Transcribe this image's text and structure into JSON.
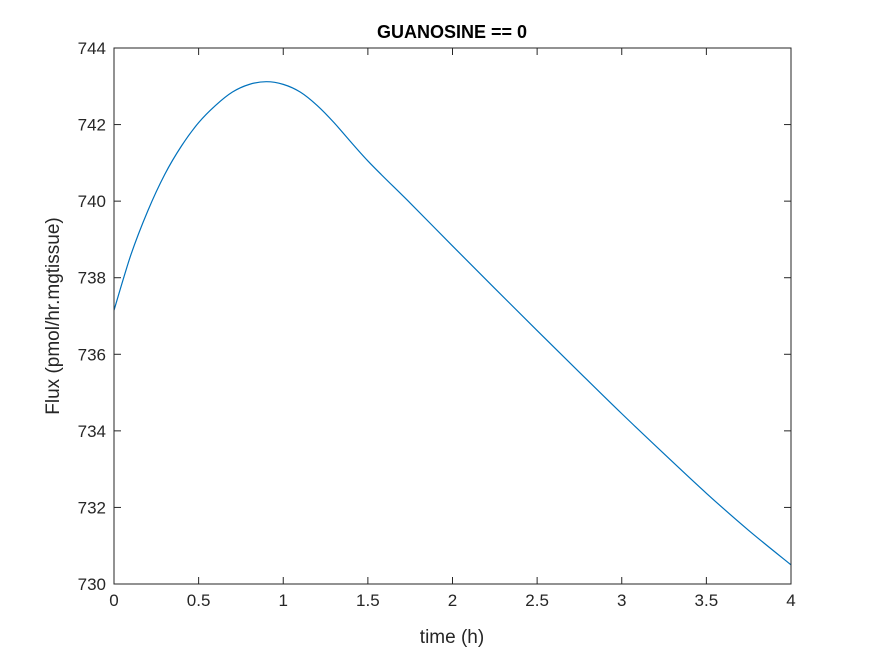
{
  "chart_data": {
    "type": "line",
    "title": "GUANOSINE == 0",
    "xlabel": "time (h)",
    "ylabel": "Flux (pmol/hr.mgtissue)",
    "xlim": [
      0,
      4
    ],
    "ylim": [
      730,
      744
    ],
    "xticks": [
      0,
      0.5,
      1,
      1.5,
      2,
      2.5,
      3,
      3.5,
      4
    ],
    "xtick_labels": [
      "0",
      "0.5",
      "1",
      "1.5",
      "2",
      "2.5",
      "3",
      "3.5",
      "4"
    ],
    "yticks": [
      730,
      732,
      734,
      736,
      738,
      740,
      742,
      744
    ],
    "ytick_labels": [
      "730",
      "732",
      "734",
      "736",
      "738",
      "740",
      "742",
      "744"
    ],
    "grid": false,
    "series": [
      {
        "name": "Flux",
        "color": "#0072BD",
        "x": [
          0,
          0.1,
          0.2,
          0.3,
          0.4,
          0.5,
          0.6,
          0.7,
          0.8,
          0.9,
          1.0,
          1.1,
          1.2,
          1.3,
          1.5,
          1.75,
          2.0,
          2.25,
          2.5,
          2.75,
          3.0,
          3.25,
          3.5,
          3.75,
          4.0
        ],
        "y": [
          737.15,
          738.6,
          739.75,
          740.7,
          741.45,
          742.05,
          742.5,
          742.85,
          743.05,
          743.12,
          743.05,
          742.85,
          742.5,
          742.05,
          741.05,
          739.95,
          738.83,
          737.72,
          736.62,
          735.53,
          734.45,
          733.4,
          732.37,
          731.4,
          730.5
        ]
      }
    ]
  }
}
